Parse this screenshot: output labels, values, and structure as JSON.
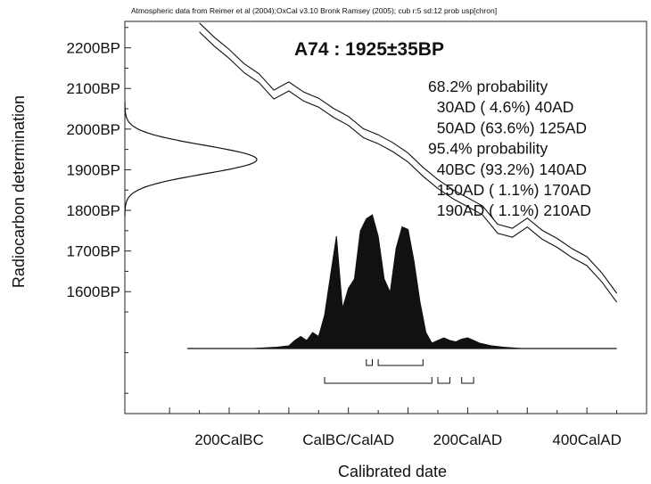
{
  "header_note": "Atmospheric data from Reimer et al (2004);OxCal v3.10 Bronk Ramsey (2005); cub r:5 sd:12 prob usp[chron]",
  "chart_data": {
    "type": "line",
    "title": "A74 : 1925±35BP",
    "xlabel": "Calibrated date",
    "ylabel": "Radiocarbon determination",
    "x_unit": "calendar year (negative = BC)",
    "y_unit": "years BP",
    "xlim": [
      -375,
      500
    ],
    "ylim": [
      1300,
      2265
    ],
    "x_ticks": [
      {
        "value": -200,
        "label": "200CalBC"
      },
      {
        "value": 0,
        "label": "CalBC/CalAD"
      },
      {
        "value": 200,
        "label": "200CalAD"
      },
      {
        "value": 400,
        "label": "400CalAD"
      }
    ],
    "y_ticks": [
      {
        "value": 2200,
        "label": "2200BP"
      },
      {
        "value": 2100,
        "label": "2100BP"
      },
      {
        "value": 2000,
        "label": "2000BP"
      },
      {
        "value": 1900,
        "label": "1900BP"
      },
      {
        "value": 1800,
        "label": "1800BP"
      },
      {
        "value": 1700,
        "label": "1700BP"
      },
      {
        "value": 1600,
        "label": "1600BP"
      }
    ],
    "measurement": {
      "mean_bp": 1925,
      "sigma": 35
    },
    "calibration_curve": {
      "x": [
        -250,
        -225,
        -200,
        -175,
        -150,
        -125,
        -100,
        -75,
        -50,
        -25,
        0,
        25,
        50,
        75,
        100,
        125,
        150,
        175,
        200,
        225,
        250,
        275,
        300,
        325,
        350,
        375,
        400,
        425,
        450
      ],
      "y": [
        2250,
        2215,
        2185,
        2150,
        2125,
        2085,
        2105,
        2080,
        2065,
        2040,
        2020,
        1990,
        1975,
        1955,
        1930,
        1895,
        1865,
        1840,
        1820,
        1800,
        1755,
        1745,
        1770,
        1740,
        1720,
        1695,
        1675,
        1635,
        1585
      ],
      "band_width_bp": 22
    },
    "posterior": {
      "x": [
        -270,
        -160,
        -120,
        -100,
        -90,
        -80,
        -70,
        -60,
        -50,
        -40,
        -30,
        -20,
        -10,
        0,
        10,
        20,
        30,
        40,
        50,
        60,
        70,
        80,
        90,
        100,
        110,
        120,
        130,
        140,
        150,
        160,
        170,
        180,
        190,
        200,
        210,
        220,
        240,
        260,
        290,
        450
      ],
      "y": [
        0,
        0,
        0.01,
        0.02,
        0.06,
        0.09,
        0.06,
        0.12,
        0.09,
        0.25,
        0.55,
        0.84,
        0.3,
        0.45,
        0.52,
        0.88,
        0.97,
        1.0,
        0.84,
        0.52,
        0.42,
        0.75,
        0.91,
        0.89,
        0.65,
        0.35,
        0.12,
        0.04,
        0.06,
        0.08,
        0.06,
        0.05,
        0.07,
        0.08,
        0.06,
        0.04,
        0.02,
        0.01,
        0,
        0
      ]
    },
    "ranges_68": [
      [
        30,
        40
      ],
      [
        50,
        125
      ]
    ],
    "ranges_95": [
      [
        -40,
        140
      ],
      [
        150,
        170
      ],
      [
        190,
        210
      ]
    ],
    "probability_text": [
      "68.2% probability",
      "  30AD ( 4.6%) 40AD",
      "  50AD (63.6%) 125AD",
      "95.4% probability",
      "  40BC (93.2%) 140AD",
      "  150AD ( 1.1%) 170AD",
      "  190AD ( 1.1%) 210AD"
    ]
  }
}
